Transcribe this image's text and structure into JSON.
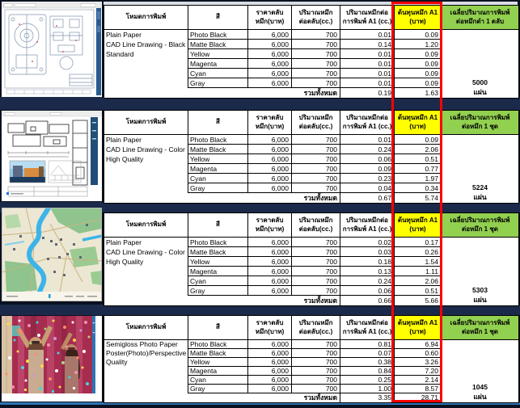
{
  "palette": {
    "page_background": "#0a1120",
    "separator_navy": "#1b2a4a",
    "bottom_line_blue": "#2e74b5",
    "highlight_yellow": "#ffff00",
    "highlight_green": "#92d050",
    "highlight_red_border": "#ff0000"
  },
  "headers": {
    "mode": "โหมดการพิมพ์",
    "color": "สี",
    "price_line1": "ราคาตลับ",
    "price_line2": "หมึก(บาท)",
    "volume_line1": "ปริมาณหมึก",
    "volume_line2": "ต่อตลับ(cc.)",
    "per_print_line1": "ปริมาณหมึกต่อ",
    "per_print_line2": "การพิมพ์ A1 (cc.)",
    "cost_line1": "ต้นทุนหมึก A1",
    "cost_line2": "(บาท)",
    "avg_line1": "เฉลี่ยปริมาณการพิมพ์"
  },
  "total_label": "รวมทั้งหมด",
  "sections": [
    {
      "preview": "cad-mechanical-line-drawing",
      "mode_lines": [
        "Plain Paper",
        "CAD Line Drawing - Black",
        "Standard"
      ],
      "avg_line2": "ต่อหมึกดำ 1 ตลับ",
      "rows": [
        {
          "color": "Photo Black",
          "price": "6,000",
          "volume": "700",
          "per_print": "0.01",
          "cost": "0.09"
        },
        {
          "color": "Matte Black",
          "price": "6,000",
          "volume": "700",
          "per_print": "0.14",
          "cost": "1.20"
        },
        {
          "color": "Yellow",
          "price": "6,000",
          "volume": "700",
          "per_print": "0.01",
          "cost": "0.09"
        },
        {
          "color": "Magenta",
          "price": "6,000",
          "volume": "700",
          "per_print": "0.01",
          "cost": "0.09"
        },
        {
          "color": "Cyan",
          "price": "6,000",
          "volume": "700",
          "per_print": "0.01",
          "cost": "0.09"
        },
        {
          "color": "Gray",
          "price": "6,000",
          "volume": "700",
          "per_print": "0.01",
          "cost": "0.09"
        }
      ],
      "total_per_print": "0.19",
      "total_cost": "1.63",
      "avg_value": "5000",
      "avg_unit": "แผ่น"
    },
    {
      "preview": "architecture-floor-plan-sheet",
      "mode_lines": [
        "Plain Paper",
        "CAD Line Drawing - Color",
        "High Quality"
      ],
      "avg_line2": "ต่อหมึก 1 ชุด",
      "rows": [
        {
          "color": "Photo Black",
          "price": "6,000",
          "volume": "700",
          "per_print": "0.01",
          "cost": "0.09"
        },
        {
          "color": "Matte Black",
          "price": "6,000",
          "volume": "700",
          "per_print": "0.24",
          "cost": "2.06"
        },
        {
          "color": "Yellow",
          "price": "6,000",
          "volume": "700",
          "per_print": "0.06",
          "cost": "0.51"
        },
        {
          "color": "Magenta",
          "price": "6,000",
          "volume": "700",
          "per_print": "0.09",
          "cost": "0.77"
        },
        {
          "color": "Cyan",
          "price": "6,000",
          "volume": "700",
          "per_print": "0.23",
          "cost": "1.97"
        },
        {
          "color": "Gray",
          "price": "6,000",
          "volume": "700",
          "per_print": "0.04",
          "cost": "0.34"
        }
      ],
      "total_per_print": "0.67",
      "total_cost": "5.74",
      "avg_value": "5224",
      "avg_unit": "แผ่น"
    },
    {
      "preview": "city-map",
      "mode_lines": [
        "Plain Paper",
        "CAD Line Drawing - Color",
        "High Quality"
      ],
      "avg_line2": "ต่อหมึก 1 ชุด",
      "rows": [
        {
          "color": "Photo Black",
          "price": "6,000",
          "volume": "700",
          "per_print": "0.02",
          "cost": "0.17"
        },
        {
          "color": "Matte Black",
          "price": "6,000",
          "volume": "700",
          "per_print": "0.03",
          "cost": "0.26"
        },
        {
          "color": "Yellow",
          "price": "6,000",
          "volume": "700",
          "per_print": "0.18",
          "cost": "1.54"
        },
        {
          "color": "Magenta",
          "price": "6,000",
          "volume": "700",
          "per_print": "0.13",
          "cost": "1.11"
        },
        {
          "color": "Cyan",
          "price": "6,000",
          "volume": "700",
          "per_print": "0.24",
          "cost": "2.06"
        },
        {
          "color": "Gray",
          "price": "6,000",
          "volume": "700",
          "per_print": "0.06",
          "cost": "0.51"
        }
      ],
      "total_per_print": "0.66",
      "total_cost": "5.66",
      "avg_value": "5303",
      "avg_unit": "แผ่น"
    },
    {
      "preview": "confetti-celebration-photo",
      "mode_lines": [
        "Semigloss Photo Paper",
        "Poster(Photo)/Perspective",
        "Quality"
      ],
      "avg_line2": "ต่อหมึก 1 ชุด",
      "rows": [
        {
          "color": "Photo Black",
          "price": "6,000",
          "volume": "700",
          "per_print": "0.81",
          "cost": "6.94"
        },
        {
          "color": "Matte Black",
          "price": "6,000",
          "volume": "700",
          "per_print": "0.07",
          "cost": "0.60"
        },
        {
          "color": "Yellow",
          "price": "6,000",
          "volume": "700",
          "per_print": "0.38",
          "cost": "3.26"
        },
        {
          "color": "Magenta",
          "price": "6,000",
          "volume": "700",
          "per_print": "0.84",
          "cost": "7.20"
        },
        {
          "color": "Cyan",
          "price": "6,000",
          "volume": "700",
          "per_print": "0.25",
          "cost": "2.14"
        },
        {
          "color": "Gray",
          "price": "6,000",
          "volume": "700",
          "per_print": "1.00",
          "cost": "8.57"
        }
      ],
      "total_per_print": "3.35",
      "total_cost": "28.71",
      "avg_value": "1045",
      "avg_unit": "แผ่น"
    }
  ]
}
